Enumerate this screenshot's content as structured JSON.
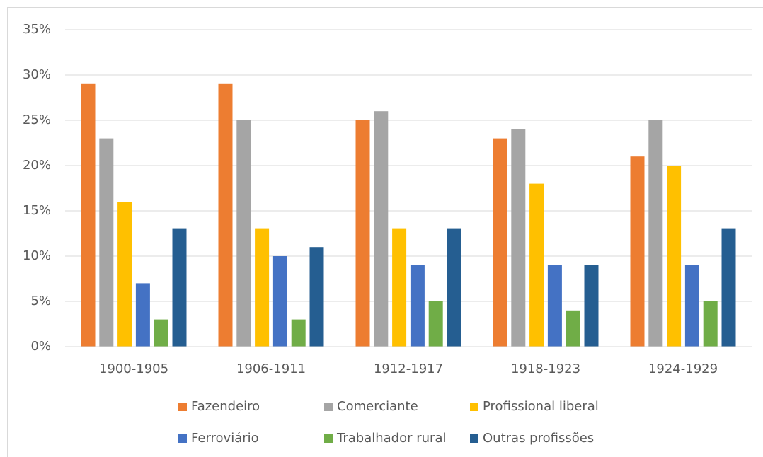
{
  "chart_data": {
    "type": "bar",
    "categories": [
      "1900-1905",
      "1906-1911",
      "1912-1917",
      "1918-1923",
      "1924-1929"
    ],
    "series": [
      {
        "name": "Fazendeiro",
        "color": "#ed7d31",
        "values": [
          29,
          29,
          25,
          23,
          21
        ]
      },
      {
        "name": "Comerciante",
        "color": "#a5a5a5",
        "values": [
          23,
          25,
          26,
          24,
          25
        ]
      },
      {
        "name": "Profissional liberal",
        "color": "#ffc000",
        "values": [
          16,
          13,
          13,
          18,
          20
        ]
      },
      {
        "name": "Ferroviário",
        "color": "#4472c4",
        "values": [
          7,
          10,
          9,
          9,
          9
        ]
      },
      {
        "name": "Trabalhador rural",
        "color": "#70ad47",
        "values": [
          3,
          3,
          5,
          4,
          5
        ]
      },
      {
        "name": "Outras profissões",
        "color": "#255e91",
        "values": [
          13,
          11,
          13,
          9,
          13
        ]
      }
    ],
    "ylim": [
      0,
      35
    ],
    "yticks": [
      {
        "value": 0,
        "label": "0%"
      },
      {
        "value": 5,
        "label": "5%"
      },
      {
        "value": 10,
        "label": "10%"
      },
      {
        "value": 15,
        "label": "15%"
      },
      {
        "value": 20,
        "label": "20%"
      },
      {
        "value": 25,
        "label": "25%"
      },
      {
        "value": 30,
        "label": "30%"
      },
      {
        "value": 35,
        "label": "35%"
      }
    ],
    "grid": true,
    "legend": "bottom"
  }
}
